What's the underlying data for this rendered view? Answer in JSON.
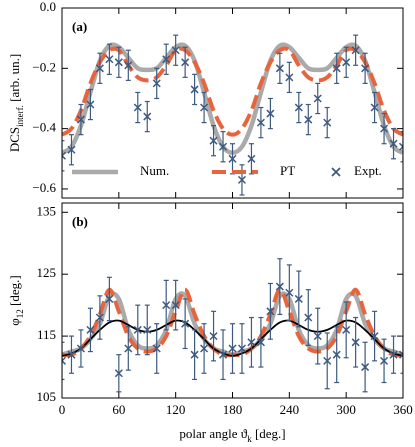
{
  "chart_data": [
    {
      "type": "line",
      "panel_label": "(a)",
      "ylabel": "DCS",
      "ylabel_sub": "interf.",
      "ylabel_unit": "[arb. un.]",
      "xlim": [
        0,
        360
      ],
      "xticks": [
        0,
        60,
        120,
        180,
        240,
        300,
        360
      ],
      "xtick_labels": false,
      "ylim": [
        -0.63,
        0
      ],
      "yticks": [
        {
          "value": 0,
          "label": "0.0"
        },
        {
          "value": -0.2,
          "label": "−0.2"
        },
        {
          "value": -0.4,
          "label": "−0.4"
        },
        {
          "value": -0.6,
          "label": "−0.6"
        }
      ],
      "legend": "lower",
      "x": [
        0,
        10,
        20,
        30,
        40,
        50,
        60,
        70,
        80,
        90,
        100,
        110,
        120,
        130,
        140,
        150,
        160,
        170,
        180,
        190,
        200,
        210,
        220,
        230,
        240,
        250,
        260,
        270,
        280,
        290,
        300,
        310,
        320,
        330,
        340,
        350,
        360
      ],
      "series": [
        {
          "name": "Num.",
          "style": "line",
          "color": "#aaaaaa",
          "values": [
            -0.48,
            -0.46,
            -0.39,
            -0.28,
            -0.175,
            -0.125,
            -0.13,
            -0.165,
            -0.2,
            -0.205,
            -0.2,
            -0.165,
            -0.13,
            -0.125,
            -0.175,
            -0.28,
            -0.39,
            -0.46,
            -0.48,
            -0.46,
            -0.39,
            -0.28,
            -0.175,
            -0.125,
            -0.13,
            -0.165,
            -0.2,
            -0.205,
            -0.2,
            -0.165,
            -0.13,
            -0.125,
            -0.175,
            -0.28,
            -0.39,
            -0.46,
            -0.48
          ]
        },
        {
          "name": "PT",
          "style": "dashed",
          "color": "#e8643c",
          "values": [
            -0.42,
            -0.4,
            -0.34,
            -0.25,
            -0.18,
            -0.14,
            -0.14,
            -0.19,
            -0.23,
            -0.24,
            -0.23,
            -0.19,
            -0.14,
            -0.14,
            -0.18,
            -0.25,
            -0.34,
            -0.4,
            -0.42,
            -0.4,
            -0.34,
            -0.25,
            -0.18,
            -0.14,
            -0.14,
            -0.19,
            -0.23,
            -0.24,
            -0.23,
            -0.19,
            -0.14,
            -0.14,
            -0.18,
            -0.25,
            -0.34,
            -0.4,
            -0.42
          ]
        },
        {
          "name": "Expt.",
          "style": "errorbar",
          "color": "#3d5a80",
          "values": [
            -0.49,
            -0.47,
            -0.37,
            -0.32,
            -0.2,
            -0.17,
            -0.18,
            -0.19,
            -0.33,
            -0.36,
            -0.25,
            -0.17,
            -0.14,
            -0.18,
            -0.27,
            -0.33,
            -0.44,
            -0.46,
            -0.5,
            -0.57,
            -0.5,
            -0.38,
            -0.35,
            -0.2,
            -0.23,
            -0.33,
            -0.37,
            -0.3,
            -0.38,
            -0.2,
            -0.18,
            -0.14,
            -0.2,
            -0.33,
            -0.4,
            -0.45,
            -0.46
          ],
          "errors": [
            0.05,
            0.05,
            0.05,
            0.05,
            0.05,
            0.05,
            0.05,
            0.05,
            0.05,
            0.05,
            0.05,
            0.05,
            0.05,
            0.05,
            0.05,
            0.05,
            0.05,
            0.05,
            0.05,
            0.05,
            0.05,
            0.05,
            0.05,
            0.05,
            0.05,
            0.05,
            0.05,
            0.05,
            0.05,
            0.05,
            0.05,
            0.05,
            0.05,
            0.05,
            0.05,
            0.05,
            0.05
          ]
        }
      ]
    },
    {
      "type": "line",
      "panel_label": "(b)",
      "ylabel": "φ",
      "ylabel_sub": "12",
      "ylabel_unit": "[deg.]",
      "xlabel": "polar angle ϑ",
      "xlabel_sub": "k",
      "xlabel_unit": "[deg.]",
      "xlim": [
        0,
        360
      ],
      "xticks": [
        0,
        60,
        120,
        180,
        240,
        300,
        360
      ],
      "xtick_labels": true,
      "ylim": [
        105,
        136.5
      ],
      "yticks": [
        105,
        115,
        125,
        135
      ],
      "x": [
        0,
        10,
        20,
        30,
        40,
        50,
        60,
        70,
        80,
        90,
        100,
        110,
        120,
        130,
        140,
        150,
        160,
        170,
        180,
        190,
        200,
        210,
        220,
        230,
        240,
        250,
        260,
        270,
        280,
        290,
        300,
        310,
        320,
        330,
        340,
        350,
        360
      ],
      "series": [
        {
          "style": "line",
          "color": "#aaaaaa",
          "values": [
            112,
            112.5,
            113,
            114.5,
            117,
            121.5,
            121,
            116,
            113.5,
            113,
            113.5,
            116,
            121,
            121.5,
            117,
            114.5,
            113,
            112.5,
            112,
            112.5,
            113,
            114.5,
            117,
            121.5,
            121,
            116,
            113.5,
            113,
            113.5,
            116,
            121,
            121.5,
            117,
            114.5,
            113,
            112.5,
            112
          ]
        },
        {
          "style": "dashed",
          "color": "#e8643c",
          "values": [
            112,
            112,
            113,
            115,
            118.5,
            122.5,
            119,
            115,
            113,
            112.5,
            113,
            115,
            119,
            122.5,
            118.5,
            115,
            113,
            112,
            112,
            112,
            113,
            115,
            118.5,
            122.5,
            119,
            115,
            113,
            112.5,
            113,
            115,
            119,
            122.5,
            118.5,
            115,
            113,
            112,
            112
          ]
        },
        {
          "style": "thin",
          "color": "#000000",
          "values": [
            111.8,
            112.2,
            113,
            114.5,
            116,
            117.2,
            117.5,
            116.8,
            116,
            115.7,
            116,
            116.8,
            117.5,
            117.2,
            116,
            114.5,
            113,
            112.2,
            111.8,
            112.2,
            113,
            114.5,
            116,
            117.2,
            117.5,
            116.8,
            116,
            115.7,
            116,
            116.8,
            117.5,
            117.2,
            116,
            114.5,
            113,
            112.2,
            111.8
          ]
        },
        {
          "style": "errorbar",
          "color": "#3d5a80",
          "values": [
            111,
            112,
            113,
            116,
            118,
            121,
            109,
            113,
            116,
            116,
            113,
            120,
            120,
            117,
            112,
            113,
            115,
            112,
            113,
            113,
            114,
            114,
            119,
            123,
            122,
            121,
            118,
            115,
            111,
            112,
            116,
            114,
            110,
            115,
            111,
            112,
            112
          ],
          "errors": [
            3,
            3,
            3,
            3.5,
            3.5,
            3.5,
            3,
            3.5,
            4,
            4,
            4,
            4,
            4,
            4,
            4,
            4,
            4,
            4,
            4,
            4,
            4,
            4,
            4.5,
            4.5,
            4.5,
            4.5,
            4.5,
            4.5,
            4.5,
            4.5,
            4.5,
            4,
            4,
            4,
            3.5,
            3,
            3
          ]
        }
      ]
    }
  ]
}
